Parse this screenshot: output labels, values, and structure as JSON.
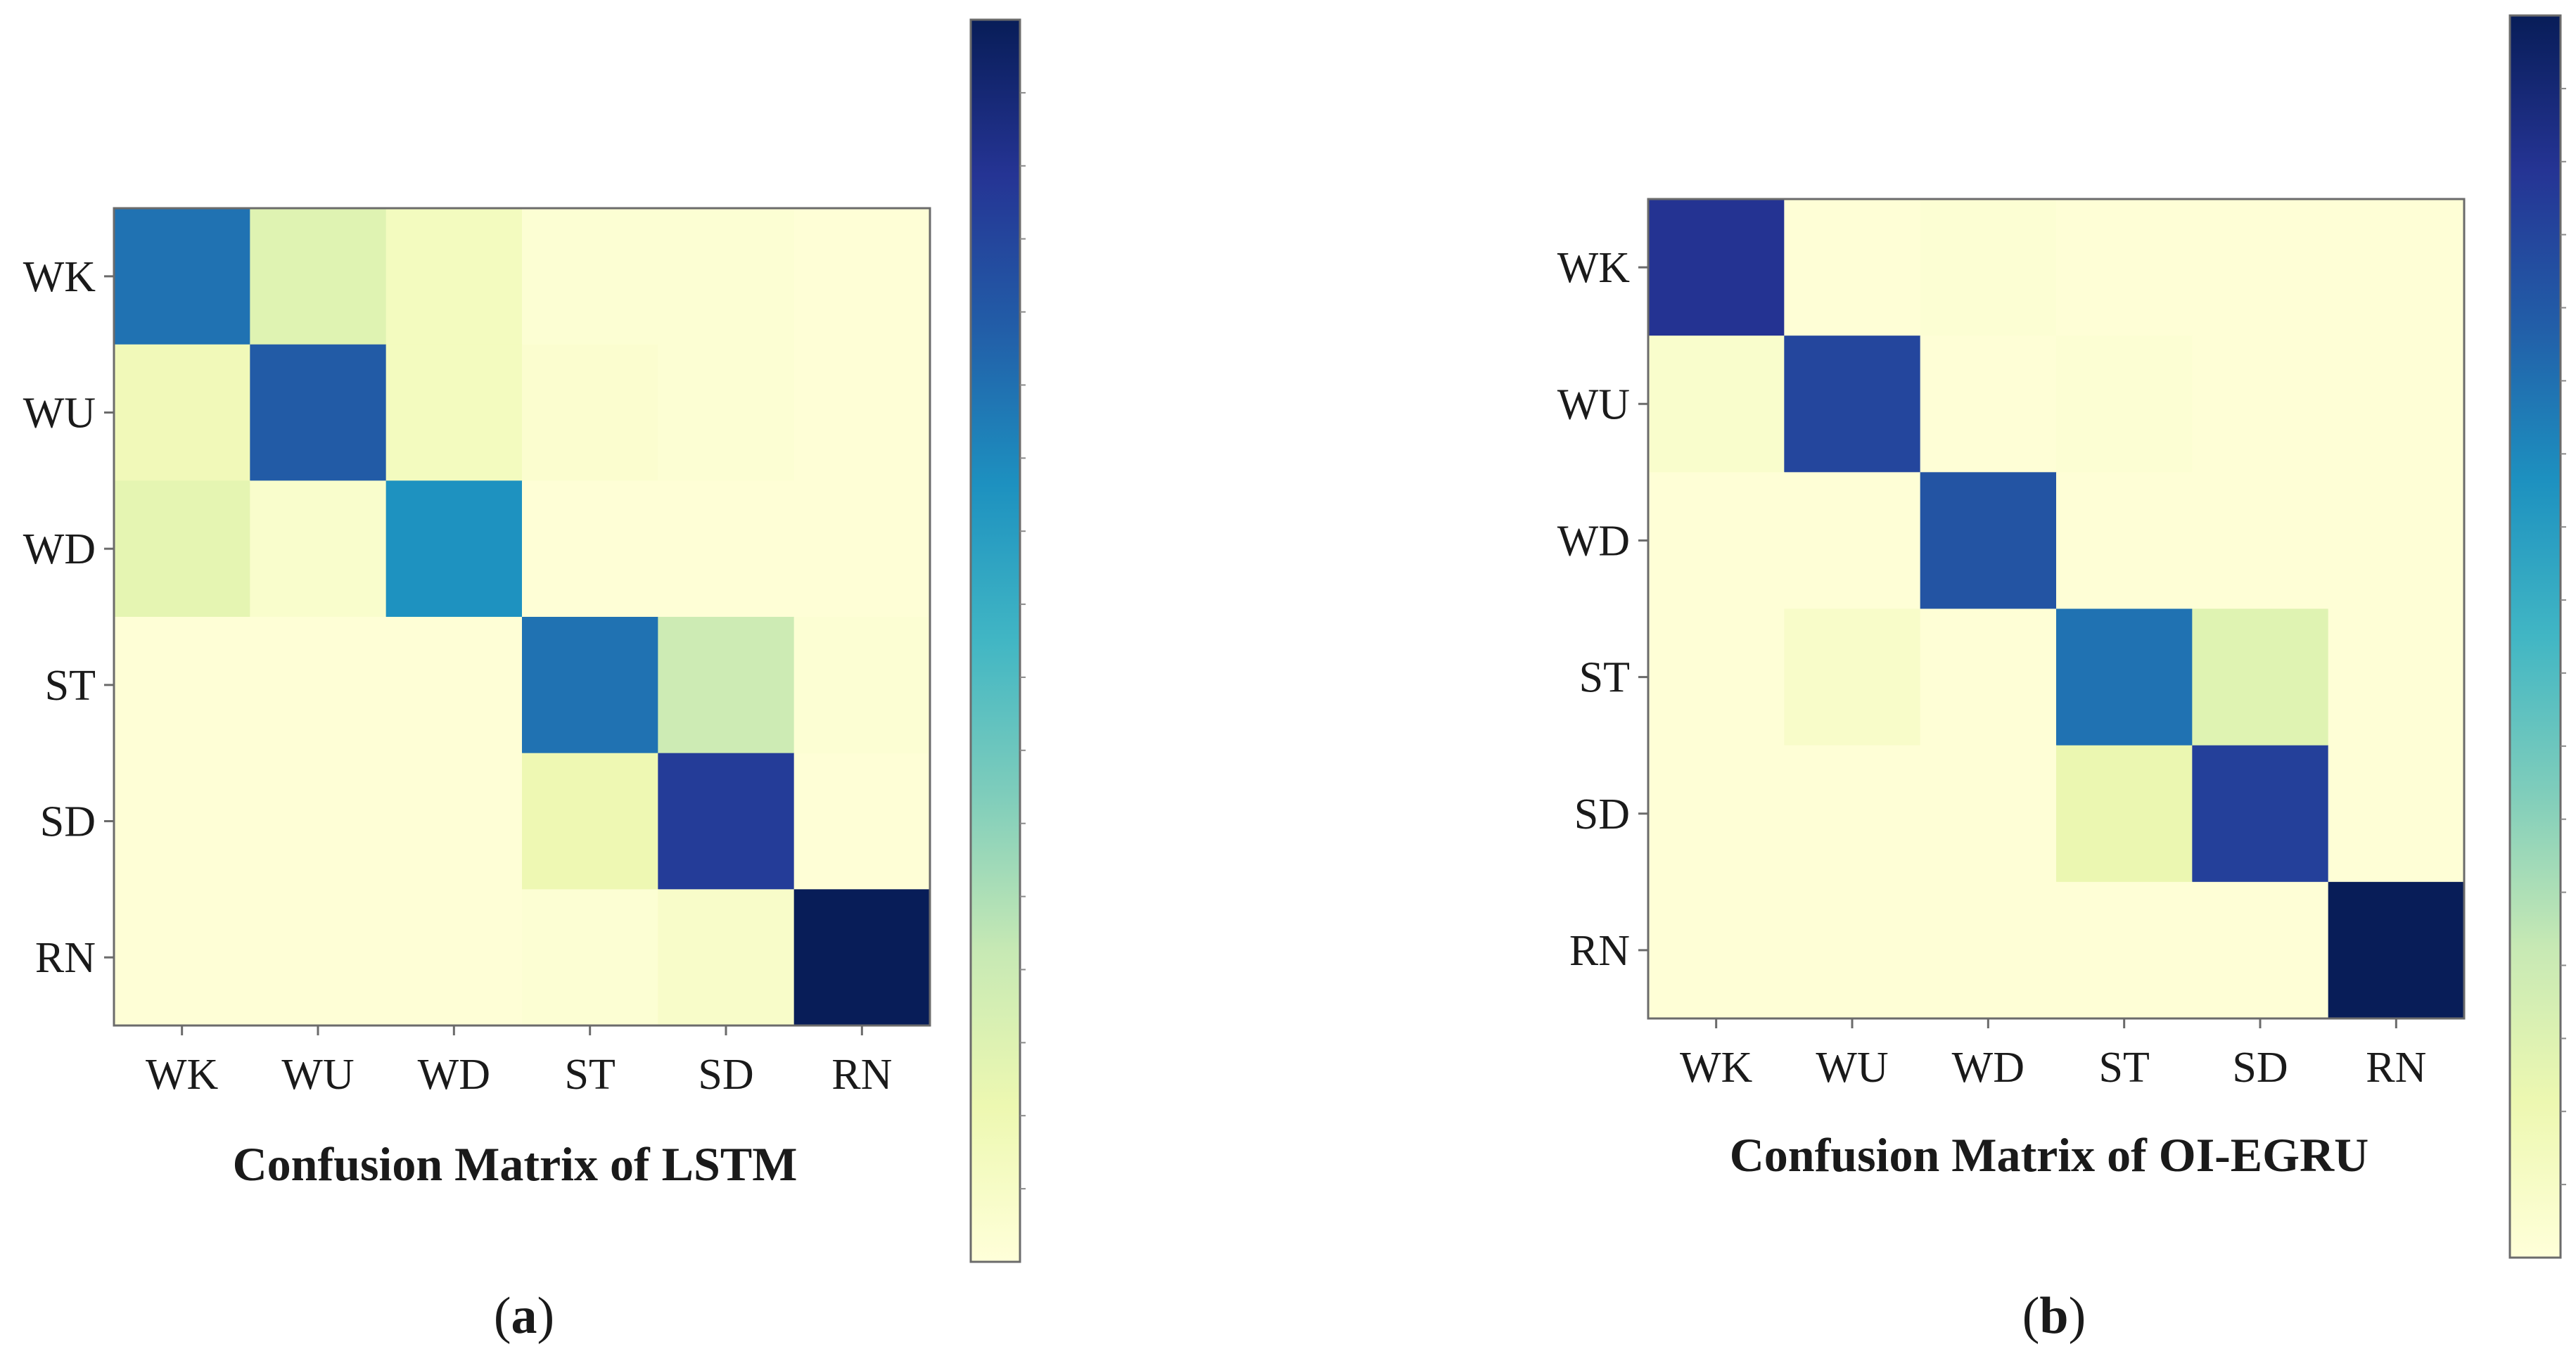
{
  "chart_data": [
    {
      "type": "heatmap",
      "title": "Confusion Matrix of LSTM",
      "caption_open": "(",
      "caption_letter": "a",
      "caption_close": ")",
      "row_labels": [
        "WK",
        "WU",
        "WD",
        "ST",
        "SD",
        "RN"
      ],
      "col_labels": [
        "WK",
        "WU",
        "WD",
        "ST",
        "SD",
        "RN"
      ],
      "values": [
        [
          0.7,
          0.17,
          0.08,
          0.02,
          0.02,
          0.01
        ],
        [
          0.1,
          0.76,
          0.08,
          0.03,
          0.02,
          0.01
        ],
        [
          0.15,
          0.04,
          0.62,
          0.01,
          0.01,
          0.01
        ],
        [
          0.01,
          0.01,
          0.01,
          0.7,
          0.23,
          0.02
        ],
        [
          0.01,
          0.01,
          0.01,
          0.12,
          0.85,
          0.01
        ],
        [
          0.01,
          0.01,
          0.01,
          0.02,
          0.05,
          1.0
        ]
      ],
      "colorbar": "vertical, right",
      "colormap": "YlGnBu",
      "colorbar_tick_labels": "none"
    },
    {
      "type": "heatmap",
      "title": "Confusion Matrix of OI-EGRU",
      "caption_open": "(",
      "caption_letter": "b",
      "caption_close": ")",
      "row_labels": [
        "WK",
        "WU",
        "WD",
        "ST",
        "SD",
        "RN"
      ],
      "col_labels": [
        "WK",
        "WU",
        "WD",
        "ST",
        "SD",
        "RN"
      ],
      "values": [
        [
          0.88,
          0.01,
          0.02,
          0.01,
          0.01,
          0.01
        ],
        [
          0.04,
          0.82,
          0.01,
          0.02,
          0.01,
          0.01
        ],
        [
          0.01,
          0.01,
          0.78,
          0.01,
          0.01,
          0.01
        ],
        [
          0.01,
          0.05,
          0.01,
          0.7,
          0.17,
          0.01
        ],
        [
          0.01,
          0.01,
          0.01,
          0.13,
          0.84,
          0.01
        ],
        [
          0.01,
          0.01,
          0.01,
          0.01,
          0.01,
          1.0
        ]
      ],
      "colorbar": "vertical, right",
      "colormap": "YlGnBu",
      "colorbar_tick_labels": "none"
    }
  ]
}
